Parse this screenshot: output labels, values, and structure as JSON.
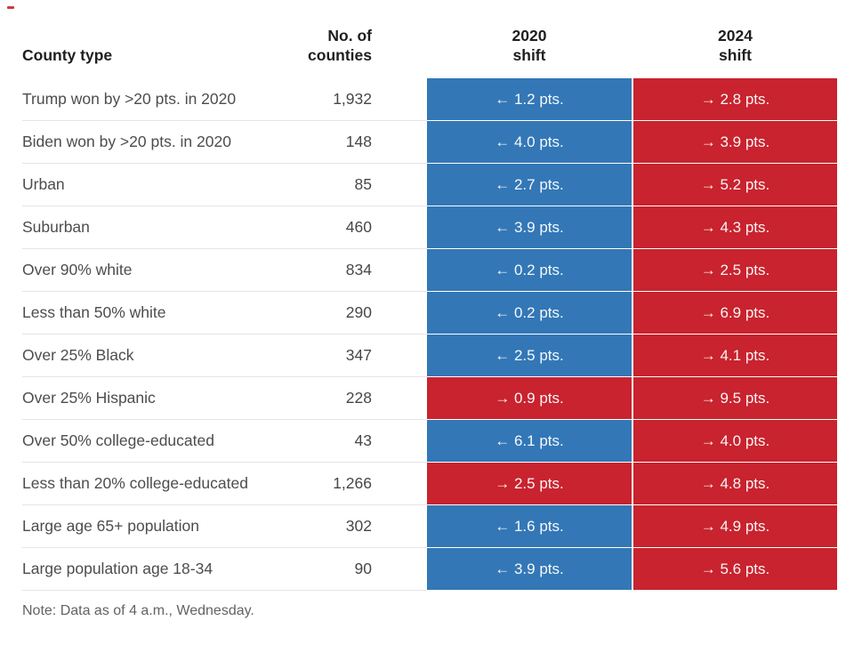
{
  "header": {
    "county_type": "County type",
    "no_of_counties": "No. of counties",
    "shift_2020": "2020\nshift",
    "shift_2024": "2024\nshift"
  },
  "colors": {
    "dem_shift_blue": "#3377b6",
    "rep_shift_red": "#c8232e"
  },
  "note": "Note: Data as of 4 a.m., Wednesday.",
  "chart_data": {
    "type": "table",
    "columns": [
      "County type",
      "No. of counties",
      "2020 shift",
      "2024 shift"
    ],
    "legend_note": "left = shift toward Democrats (blue), right = shift toward Republicans (red)",
    "rows": [
      {
        "label": "Trump won by >20 pts. in 2020",
        "counties": "1,932",
        "shift_2020": {
          "text": "← 1.2 pts.",
          "dir": "left",
          "value": -1.2
        },
        "shift_2024": {
          "text": "→ 2.8 pts.",
          "dir": "right",
          "value": 2.8
        }
      },
      {
        "label": "Biden won by >20 pts. in 2020",
        "counties": "148",
        "shift_2020": {
          "text": "← 4.0 pts.",
          "dir": "left",
          "value": -4.0
        },
        "shift_2024": {
          "text": "→ 3.9 pts.",
          "dir": "right",
          "value": 3.9
        }
      },
      {
        "label": "Urban",
        "counties": "85",
        "shift_2020": {
          "text": "← 2.7 pts.",
          "dir": "left",
          "value": -2.7
        },
        "shift_2024": {
          "text": "→ 5.2 pts.",
          "dir": "right",
          "value": 5.2
        }
      },
      {
        "label": "Suburban",
        "counties": "460",
        "shift_2020": {
          "text": "← 3.9 pts.",
          "dir": "left",
          "value": -3.9
        },
        "shift_2024": {
          "text": "→ 4.3 pts.",
          "dir": "right",
          "value": 4.3
        }
      },
      {
        "label": "Over 90% white",
        "counties": "834",
        "shift_2020": {
          "text": "← 0.2 pts.",
          "dir": "left",
          "value": -0.2
        },
        "shift_2024": {
          "text": "→ 2.5 pts.",
          "dir": "right",
          "value": 2.5
        }
      },
      {
        "label": "Less than 50% white",
        "counties": "290",
        "shift_2020": {
          "text": "← 0.2 pts.",
          "dir": "left",
          "value": -0.2
        },
        "shift_2024": {
          "text": "→ 6.9 pts.",
          "dir": "right",
          "value": 6.9
        }
      },
      {
        "label": "Over 25% Black",
        "counties": "347",
        "shift_2020": {
          "text": "← 2.5 pts.",
          "dir": "left",
          "value": -2.5
        },
        "shift_2024": {
          "text": "→ 4.1 pts.",
          "dir": "right",
          "value": 4.1
        }
      },
      {
        "label": "Over 25% Hispanic",
        "counties": "228",
        "shift_2020": {
          "text": "→ 0.9 pts.",
          "dir": "right",
          "value": 0.9
        },
        "shift_2024": {
          "text": "→ 9.5 pts.",
          "dir": "right",
          "value": 9.5
        }
      },
      {
        "label": "Over 50% college-educated",
        "counties": "43",
        "shift_2020": {
          "text": "← 6.1 pts.",
          "dir": "left",
          "value": -6.1
        },
        "shift_2024": {
          "text": "→ 4.0 pts.",
          "dir": "right",
          "value": 4.0
        }
      },
      {
        "label": "Less than 20% college-educated",
        "counties": "1,266",
        "shift_2020": {
          "text": "→ 2.5 pts.",
          "dir": "right",
          "value": 2.5
        },
        "shift_2024": {
          "text": "→ 4.8 pts.",
          "dir": "right",
          "value": 4.8
        }
      },
      {
        "label": "Large age 65+ population",
        "counties": "302",
        "shift_2020": {
          "text": "← 1.6 pts.",
          "dir": "left",
          "value": -1.6
        },
        "shift_2024": {
          "text": "→ 4.9 pts.",
          "dir": "right",
          "value": 4.9
        }
      },
      {
        "label": "Large population age 18-34",
        "counties": "90",
        "shift_2020": {
          "text": "← 3.9 pts.",
          "dir": "left",
          "value": -3.9
        },
        "shift_2024": {
          "text": "→ 5.6 pts.",
          "dir": "right",
          "value": 5.6
        }
      }
    ]
  }
}
